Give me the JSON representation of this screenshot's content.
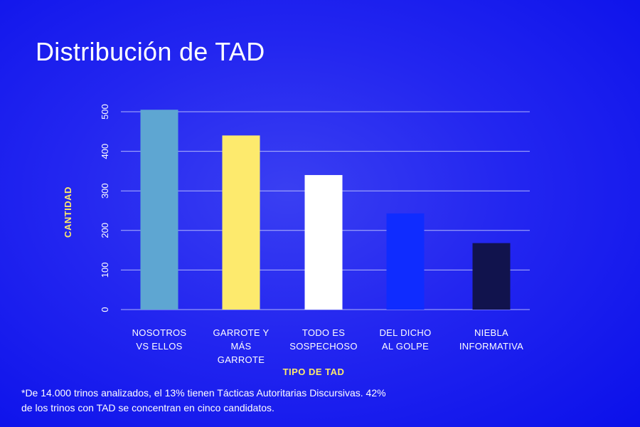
{
  "chart_data": {
    "type": "bar",
    "title": "Distribución de TAD",
    "categories": [
      [
        "NOSOTROS",
        "VS ELLOS"
      ],
      [
        "GARROTE Y",
        "MÁS",
        "GARROTE"
      ],
      [
        "TODO ES",
        "SOSPECHOSO"
      ],
      [
        "DEL DICHO",
        "AL GOLPE"
      ],
      [
        "NIEBLA",
        "INFORMATIVA"
      ]
    ],
    "values": [
      505,
      440,
      340,
      243,
      168
    ],
    "bar_colors": [
      "#5ea6d2",
      "#fdea6d",
      "#ffffff",
      "#0f2cff",
      "#11134d"
    ],
    "xlabel": "TIPO DE TAD",
    "ylabel": "CANTIDAD",
    "yticks": [
      0,
      100,
      200,
      300,
      400,
      500
    ],
    "ylim": [
      0,
      520
    ],
    "grid": true
  },
  "colors": {
    "axis_label": "#fdea6d",
    "grid": "#c8ccff",
    "tick": "#ffffff"
  },
  "footnote": {
    "line1": "*De 14.000 trinos analizados, el 13% tienen Tácticas Autoritarias Discursivas. 42%",
    "line2": "de los trinos con TAD se concentran en cinco candidatos."
  }
}
